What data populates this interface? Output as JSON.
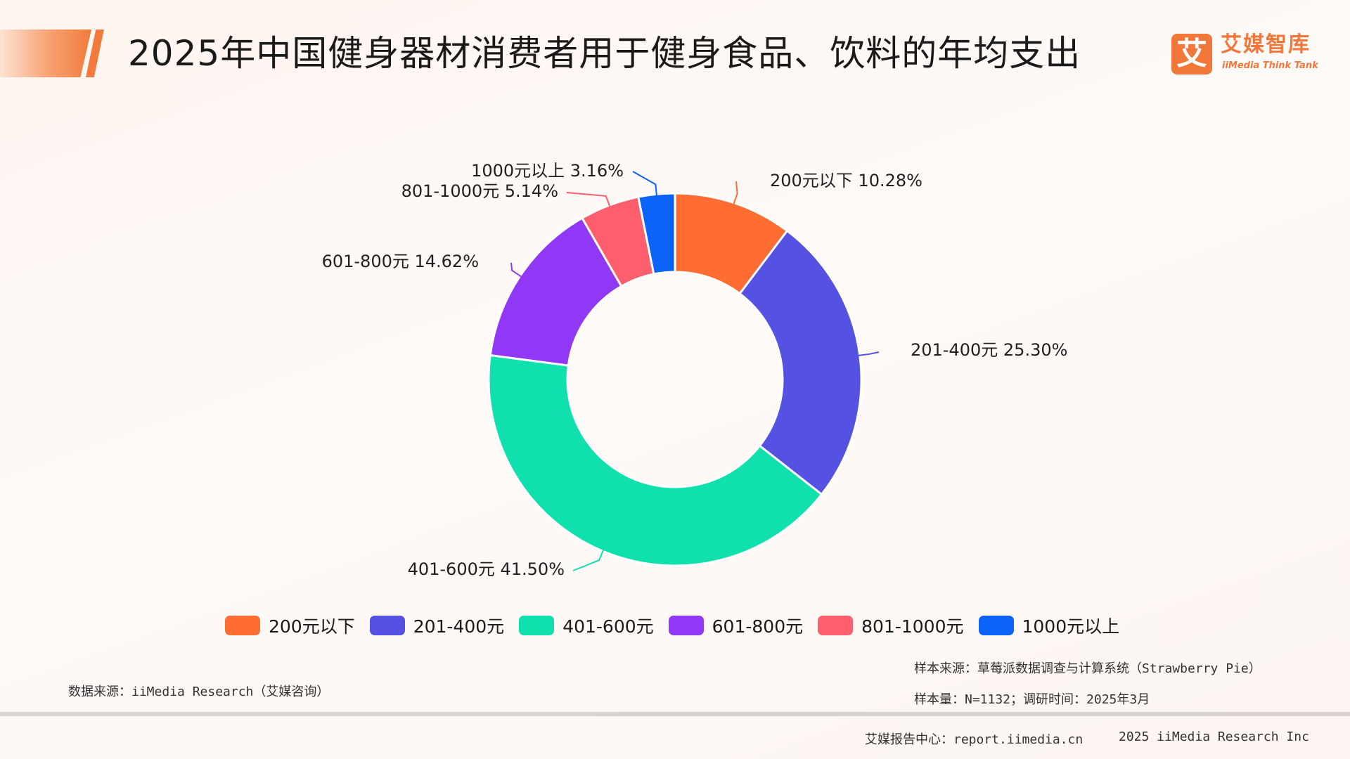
{
  "header": {
    "title": "2025年中国健身器材消费者用于健身食品、饮料的年均支出"
  },
  "logo": {
    "mark": "艾",
    "name": "艾媒智库",
    "subtitle": "iiMedia Think Tank"
  },
  "chart_data": {
    "type": "pie",
    "donut": true,
    "title": "2025年中国健身器材消费者用于健身食品、饮料的年均支出",
    "unit": "%",
    "legend_position": "bottom",
    "categories": [
      "200元以下",
      "201-400元",
      "401-600元",
      "601-800元",
      "801-1000元",
      "1000元以上"
    ],
    "values": [
      10.28,
      25.3,
      41.5,
      14.62,
      5.14,
      3.16
    ],
    "labels": [
      "200元以下 10.28%",
      "201-400元 25.30%",
      "401-600元 41.50%",
      "601-800元 14.62%",
      "801-1000元 5.14%",
      "1000元以上 3.16%"
    ],
    "colors": [
      "#ff6d33",
      "#5551e3",
      "#0fe0ae",
      "#9138f7",
      "#ff5e6c",
      "#0b63f7"
    ]
  },
  "notes": {
    "data_source": "数据来源：iiMedia Research（艾媒咨询）",
    "sample_source": "样本来源：草莓派数据调查与计算系统（Strawberry Pie）",
    "sample_size": "样本量：N=1132；调研时间：2025年3月"
  },
  "footer": {
    "report_center": "艾媒报告中心：report.iimedia.cn",
    "copyright": "2025 iiMedia Research Inc"
  }
}
